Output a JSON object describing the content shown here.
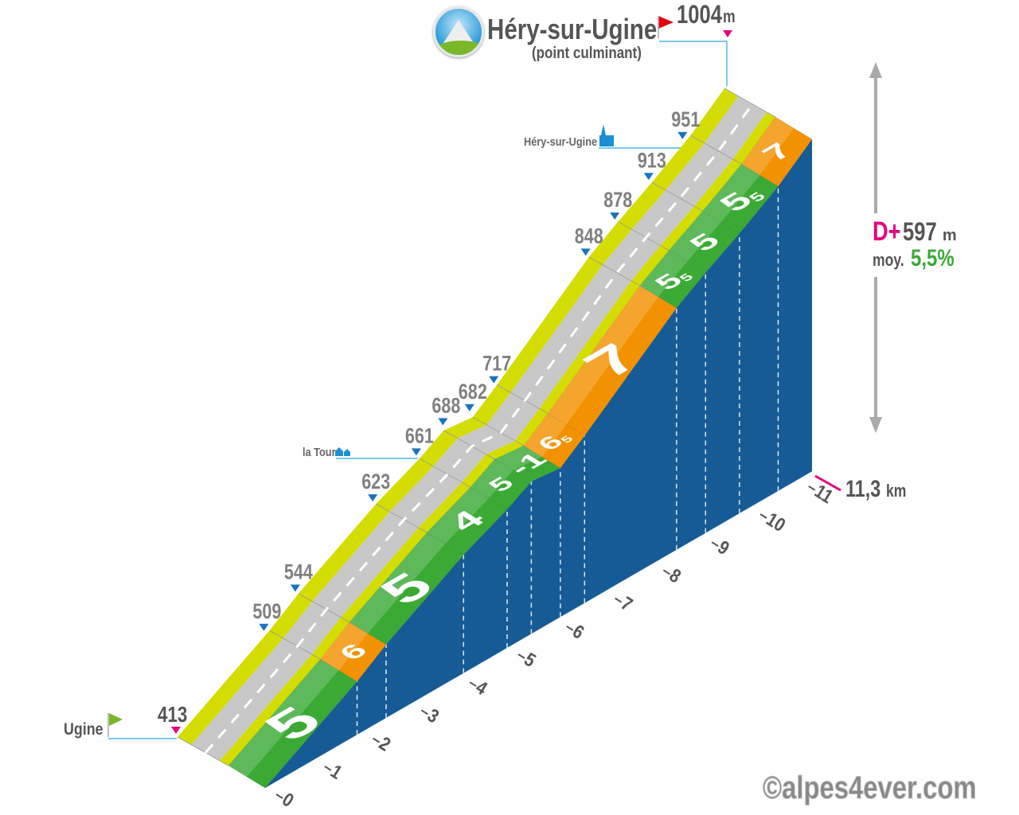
{
  "header": {
    "title": "Héry-sur-Ugine",
    "subtitle": "(point culminant)",
    "summit_alt": "1004",
    "summit_unit": "m",
    "logo_icon": "mountain-road-logo-icon"
  },
  "start": {
    "name": "Ugine",
    "alt": "413",
    "icon": "green-flag-icon"
  },
  "places": [
    {
      "name": "Héry-sur-Ugine",
      "icon": "church-icon"
    },
    {
      "name": "la Tour",
      "icon": "houses-icon"
    }
  ],
  "stats": {
    "dplus_label": "D+",
    "dplus_value": "597",
    "dplus_unit": "m",
    "avg_label": "moy.",
    "avg_value": "5,5%"
  },
  "distance": {
    "value": "11,3",
    "unit": "km"
  },
  "watermark": "©alpes4ever.com",
  "colors": {
    "wall": "#175b96",
    "green": "#3aaa35",
    "orange": "#f39200",
    "road": "#c8c8c8",
    "road_edge": "#d4dc00",
    "marker": "#1a73c0",
    "summit": "#e5007e",
    "flag": "#e30613",
    "place_line": "#29aae1"
  },
  "chart_data": {
    "type": "area",
    "xlabel": "km",
    "total_km": 11.3,
    "start_alt": 413,
    "end_alt": 1004,
    "km_ticks": [
      "0",
      "1",
      "2",
      "3",
      "4",
      "5",
      "6",
      "7",
      "8",
      "9",
      "10",
      "11"
    ],
    "segments": [
      {
        "from": 0,
        "to": 1.9,
        "gradient": "5"
      },
      {
        "from": 1.9,
        "to": 2.5,
        "gradient": "6"
      },
      {
        "from": 2.5,
        "to": 4.1,
        "gradient": "5"
      },
      {
        "from": 4.1,
        "to": 5.0,
        "gradient": "4"
      },
      {
        "from": 5.0,
        "to": 5.5,
        "gradient": "5"
      },
      {
        "from": 5.5,
        "to": 6.1,
        "gradient": "-1"
      },
      {
        "from": 6.1,
        "to": 6.6,
        "gradient": "6,5"
      },
      {
        "from": 6.6,
        "to": 8.5,
        "gradient": "7"
      },
      {
        "from": 8.5,
        "to": 9.1,
        "gradient": "5,5"
      },
      {
        "from": 9.1,
        "to": 9.8,
        "gradient": "5"
      },
      {
        "from": 9.8,
        "to": 10.6,
        "gradient": "5,5"
      },
      {
        "from": 10.6,
        "to": 11.3,
        "gradient": "7"
      }
    ],
    "altitude_markers": [
      {
        "km": 1.75,
        "alt": "509"
      },
      {
        "km": 2.4,
        "alt": "544"
      },
      {
        "km": 4.0,
        "alt": "623"
      },
      {
        "km": 4.9,
        "alt": "661"
      },
      {
        "km": 5.45,
        "alt": "688"
      },
      {
        "km": 6.0,
        "alt": "682"
      },
      {
        "km": 6.5,
        "alt": "717"
      },
      {
        "km": 8.4,
        "alt": "848"
      },
      {
        "km": 9.0,
        "alt": "878"
      },
      {
        "km": 9.7,
        "alt": "913"
      },
      {
        "km": 10.4,
        "alt": "951"
      }
    ]
  }
}
